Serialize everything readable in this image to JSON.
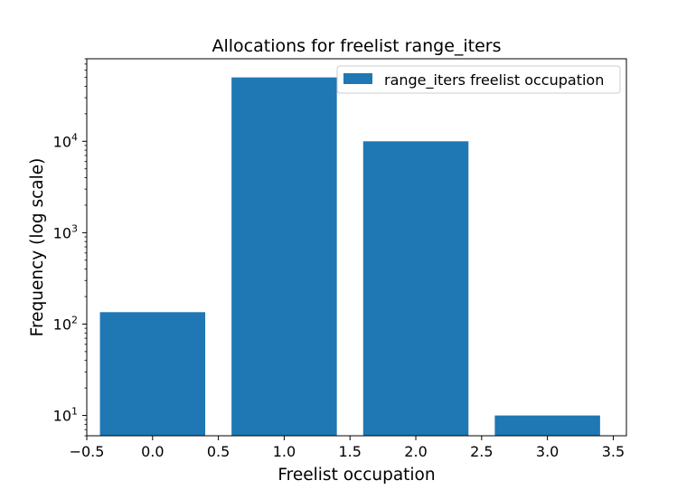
{
  "chart_data": {
    "type": "bar",
    "title": "Allocations for freelist range_iters",
    "xlabel": "Freelist occupation",
    "ylabel": "Frequency (log scale)",
    "yscale": "log",
    "x": [
      0,
      1,
      2,
      3
    ],
    "values": [
      135,
      50000,
      10000,
      10
    ],
    "bar_width": 0.8,
    "xlim": [
      -0.5,
      3.6
    ],
    "ylim": [
      6,
      80000
    ],
    "xticks": [
      -0.5,
      0.0,
      0.5,
      1.0,
      1.5,
      2.0,
      2.5,
      3.0,
      3.5
    ],
    "xtick_labels": [
      "−0.5",
      "0.0",
      "0.5",
      "1.0",
      "1.5",
      "2.0",
      "2.5",
      "3.0",
      "3.5"
    ],
    "yticks": [
      {
        "value": 10,
        "base": "10",
        "exp": "1"
      },
      {
        "value": 100,
        "base": "10",
        "exp": "2"
      },
      {
        "value": 1000,
        "base": "10",
        "exp": "3"
      },
      {
        "value": 10000,
        "base": "10",
        "exp": "4"
      }
    ],
    "series": [
      {
        "name": "range_iters freelist occupation",
        "color": "#1f77b4"
      }
    ],
    "legend_position": "top-right",
    "grid": false
  }
}
